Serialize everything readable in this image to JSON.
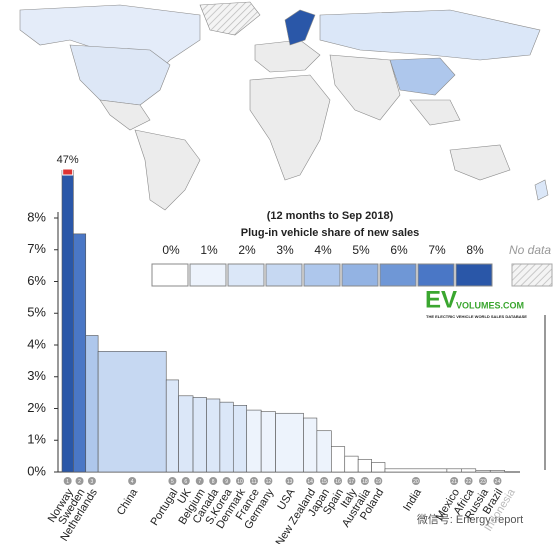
{
  "chart_data": {
    "type": "bar",
    "title": "Plug-in vehicle share of new sales",
    "subtitle": "(12 months to Sep 2018)",
    "categories": [
      "Norway",
      "Sweden",
      "Netherlands",
      "China",
      "Portugal",
      "UK",
      "Belgium",
      "Canada",
      "S.Korea",
      "Denmark",
      "France",
      "Germany",
      "USA",
      "New Zealand",
      "Japan",
      "Spain",
      "Italy",
      "Australia",
      "Poland",
      "India",
      "Mexico",
      "Africa",
      "Russia",
      "Brazil",
      "Indonesia"
    ],
    "ranks": [
      "1",
      "2",
      "3",
      "4",
      "5",
      "6",
      "7",
      "8",
      "9",
      "10",
      "11",
      "12",
      "13",
      "14",
      "15",
      "16",
      "17",
      "18",
      "19",
      "20",
      "21",
      "22",
      "23",
      "24",
      null
    ],
    "values": [
      47,
      7.5,
      4.3,
      3.8,
      2.9,
      2.4,
      2.35,
      2.3,
      2.2,
      2.1,
      1.95,
      1.9,
      1.85,
      1.7,
      1.3,
      0.8,
      0.5,
      0.4,
      0.3,
      0.1,
      0.1,
      0.1,
      0.05,
      0.05,
      0
    ],
    "value_labels": [
      "47%",
      null,
      null,
      null,
      null,
      null,
      null,
      null,
      null,
      null,
      null,
      null,
      null,
      null,
      null,
      null,
      null,
      null,
      null,
      null,
      null,
      null,
      null,
      null,
      null
    ],
    "widths": [
      11,
      12,
      12,
      66,
      12,
      14,
      13,
      13,
      13,
      13,
      14,
      14,
      27,
      13,
      14,
      13,
      13,
      13,
      13,
      60,
      14,
      14,
      14,
      14,
      10
    ],
    "ylim": [
      0,
      8
    ],
    "yticks": [
      {
        "value": 0,
        "label": "0%"
      },
      {
        "value": 1,
        "label": "1%"
      },
      {
        "value": 2,
        "label": "2%"
      },
      {
        "value": 3,
        "label": "3%"
      },
      {
        "value": 4,
        "label": "4%"
      },
      {
        "value": 5,
        "label": "5%"
      },
      {
        "value": 6,
        "label": "6%"
      },
      {
        "value": 7,
        "label": "7%"
      },
      {
        "value": 8,
        "label": "8%"
      }
    ],
    "legend": {
      "steps": [
        {
          "value": 0,
          "label": "0%"
        },
        {
          "value": 1,
          "label": "1%"
        },
        {
          "value": 2,
          "label": "2%"
        },
        {
          "value": 3,
          "label": "3%"
        },
        {
          "value": 4,
          "label": "4%"
        },
        {
          "value": 5,
          "label": "5%"
        },
        {
          "value": 6,
          "label": "6%"
        },
        {
          "value": 7,
          "label": "7%"
        },
        {
          "value": 8,
          "label": "8%"
        }
      ],
      "colors": [
        "#ffffff",
        "#edf3fc",
        "#dbe7f8",
        "#c6d8f2",
        "#aec7ec",
        "#93b3e3",
        "#6f97d6",
        "#4a77c6",
        "#2a57a8"
      ],
      "no_data": "No data"
    },
    "logo": {
      "ev": "EV",
      "site": "VOLUMES.COM",
      "tagline": "THE ELECTRIC VEHICLE WORLD SALES DATABASE"
    },
    "watermark": "微信号: Energy-report"
  }
}
